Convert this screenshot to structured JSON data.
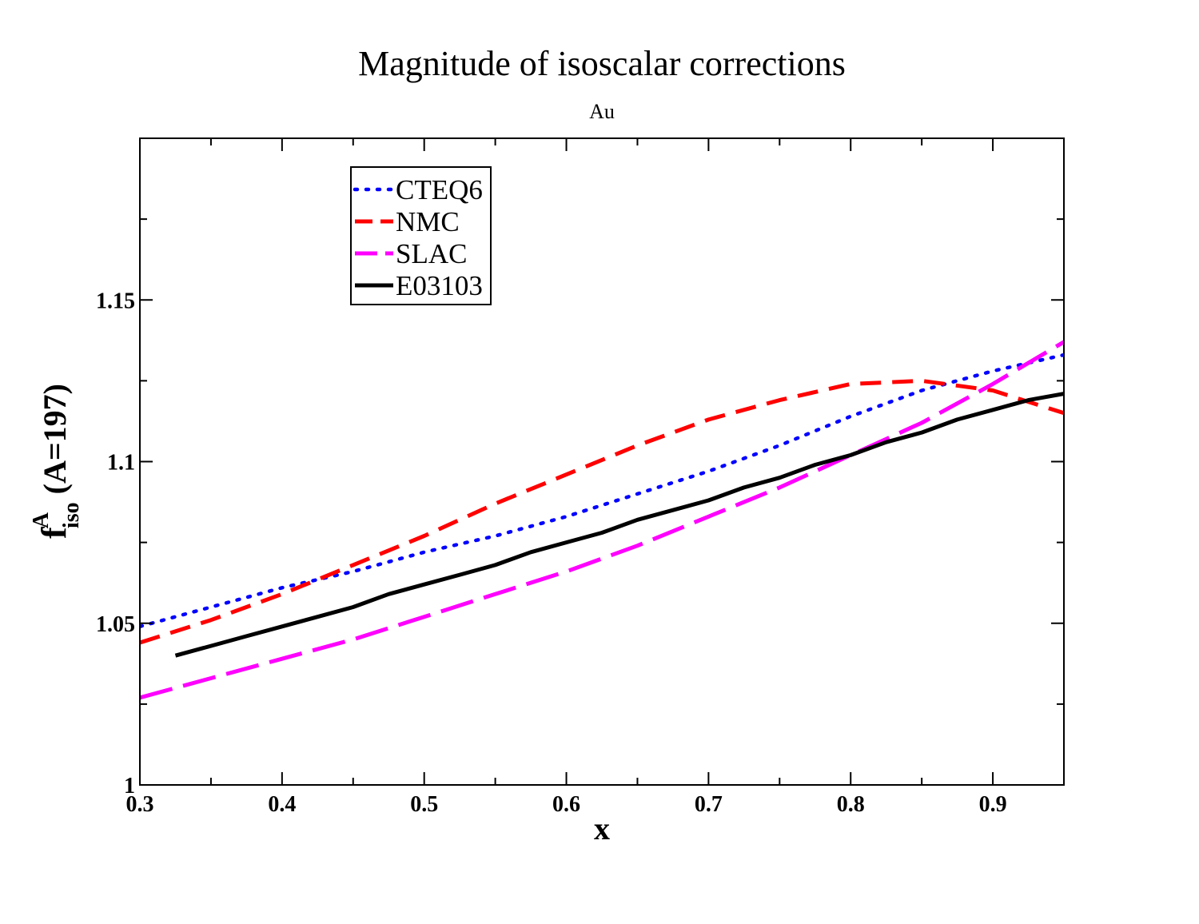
{
  "chart_data": {
    "type": "line",
    "title": "Magnitude of isoscalar corrections",
    "subtitle": "Au",
    "xlabel": "x",
    "ylabel": {
      "base": "f",
      "superscript": "A",
      "subscript": "iso",
      "suffix": " (A=197)"
    },
    "xlim": [
      0.3,
      0.95
    ],
    "ylim": [
      1.0,
      1.2
    ],
    "x_ticks": [
      0.3,
      0.4,
      0.5,
      0.6,
      0.7,
      0.8,
      0.9
    ],
    "x_tick_labels": [
      "0.3",
      "0.4",
      "0.5",
      "0.6",
      "0.7",
      "0.8",
      "0.9"
    ],
    "y_ticks": [
      1.0,
      1.05,
      1.1,
      1.15
    ],
    "y_tick_labels": [
      "1",
      "1.05",
      "1.1",
      "1.15"
    ],
    "grid": false,
    "legend_position": "top-left",
    "series": [
      {
        "name": "CTEQ6",
        "color": "#0000ff",
        "style": "dotted",
        "x": [
          0.3,
          0.35,
          0.4,
          0.45,
          0.5,
          0.55,
          0.6,
          0.65,
          0.7,
          0.75,
          0.8,
          0.85,
          0.9,
          0.95
        ],
        "y": [
          1.049,
          1.055,
          1.061,
          1.066,
          1.072,
          1.077,
          1.083,
          1.09,
          1.097,
          1.105,
          1.114,
          1.122,
          1.128,
          1.133
        ]
      },
      {
        "name": "NMC",
        "color": "#ff0000",
        "style": "dashed",
        "x": [
          0.3,
          0.35,
          0.4,
          0.45,
          0.5,
          0.55,
          0.6,
          0.65,
          0.7,
          0.75,
          0.8,
          0.85,
          0.9,
          0.95
        ],
        "y": [
          1.044,
          1.051,
          1.059,
          1.068,
          1.077,
          1.087,
          1.096,
          1.105,
          1.113,
          1.119,
          1.124,
          1.125,
          1.122,
          1.115
        ]
      },
      {
        "name": "SLAC",
        "color": "#ff00ff",
        "style": "longdash",
        "x": [
          0.3,
          0.35,
          0.4,
          0.45,
          0.5,
          0.55,
          0.6,
          0.65,
          0.7,
          0.75,
          0.8,
          0.85,
          0.9,
          0.95
        ],
        "y": [
          1.027,
          1.033,
          1.039,
          1.045,
          1.052,
          1.059,
          1.066,
          1.074,
          1.083,
          1.092,
          1.102,
          1.112,
          1.124,
          1.137
        ]
      },
      {
        "name": "E03103",
        "color": "#000000",
        "style": "solid",
        "x": [
          0.325,
          0.35,
          0.375,
          0.4,
          0.425,
          0.45,
          0.475,
          0.5,
          0.525,
          0.55,
          0.575,
          0.6,
          0.625,
          0.65,
          0.675,
          0.7,
          0.725,
          0.75,
          0.775,
          0.8,
          0.825,
          0.85,
          0.875,
          0.9,
          0.925,
          0.95
        ],
        "y": [
          1.04,
          1.043,
          1.046,
          1.049,
          1.052,
          1.055,
          1.059,
          1.062,
          1.065,
          1.068,
          1.072,
          1.075,
          1.078,
          1.082,
          1.085,
          1.088,
          1.092,
          1.095,
          1.099,
          1.102,
          1.106,
          1.109,
          1.113,
          1.116,
          1.119,
          1.121
        ]
      }
    ]
  }
}
